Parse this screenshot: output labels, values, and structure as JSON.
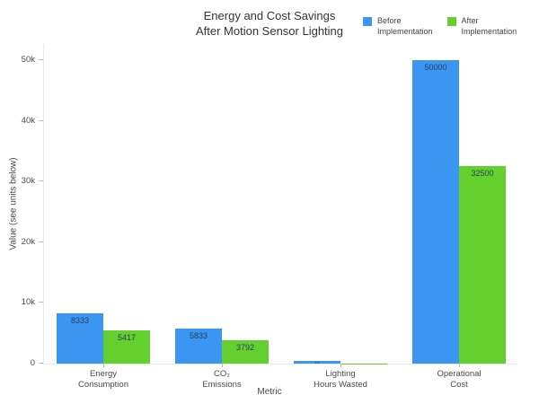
{
  "title": {
    "line1": "Energy and Cost Savings",
    "line2": "After Motion Sensor Lighting"
  },
  "legend": [
    {
      "line1": "Before",
      "line2": "Implementation",
      "color": "#3a96f0"
    },
    {
      "line1": "After",
      "line2": "Implementation",
      "color": "#63d02e"
    }
  ],
  "chart_data": {
    "type": "bar",
    "title": "Energy and Cost Savings After Motion Sensor Lighting",
    "xlabel": "Metric",
    "ylabel": "Value (see units below)",
    "categories": [
      "Energy Consumption",
      "CO₂ Emissions",
      "Lighting Hours Wasted",
      "Operational Cost"
    ],
    "categories_lines": [
      [
        "Energy",
        "Consumption"
      ],
      [
        "CO₂",
        "Emissions"
      ],
      [
        "Lighting",
        "Hours Wasted"
      ],
      [
        "Operational",
        "Cost"
      ]
    ],
    "series": [
      {
        "name": "Before Implementation",
        "color": "#3a96f0",
        "values": [
          8333,
          5833,
          375,
          50000
        ]
      },
      {
        "name": "After Implementation",
        "color": "#63d02e",
        "values": [
          5417,
          3792,
          38,
          32500
        ]
      }
    ],
    "bar_labels": true,
    "grid": false,
    "legend_position": "top-right",
    "ylim": [
      0,
      52600
    ],
    "ytick_values": [
      0,
      10000,
      20000,
      30000,
      40000,
      50000
    ],
    "ytick_labels": [
      "0",
      "10k",
      "20k",
      "30k",
      "40k",
      "50k"
    ]
  }
}
